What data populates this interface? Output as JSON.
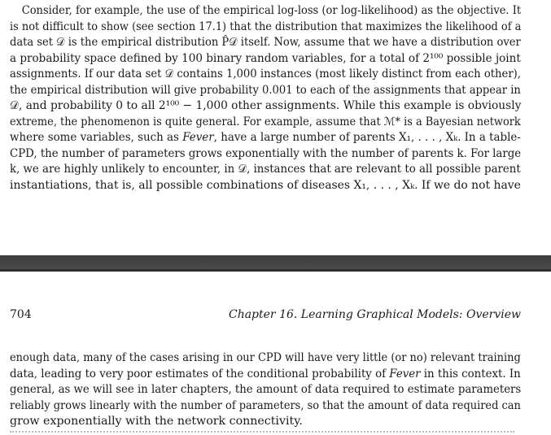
{
  "page_top": {
    "lines": [
      "Consider, for example, the use of the empirical log-loss (or log-likelihood) as the objective. It",
      "is not difficult to show (see section 17.1) that the distribution that maximizes the likelihood of a",
      "data set 𝒟 is the empirical distribution P̂𝒟 itself. Now, assume that we have a distribution over",
      "a probability space defined by 100 binary random variables, for a total of 2¹⁰⁰ possible joint",
      "assignments. If our data set 𝒟 contains 1,000 instances (most likely distinct from each other),",
      "the empirical distribution will give probability 0.001 to each of the assignments that appear in",
      "𝒟, and probability 0 to all 2¹⁰⁰ − 1,000 other assignments. While this example is obviously",
      "extreme, the phenomenon is quite general. For example, assume that ℳ* is a Bayesian network",
      "where some variables, such as Fever, have a large number of parents X₁, . . . , Xₖ. In a table-",
      "CPD, the number of parameters grows exponentially with the number of parents k. For large",
      "k, we are highly unlikely to encounter, in 𝒟, instances that are relevant to all possible parent",
      "instantiations, that is, all possible combinations of diseases X₁, . . . , Xₖ. If we do not have"
    ]
  },
  "page_bottom": {
    "page_number": "704",
    "running_head": "Chapter 16.  Learning Graphical Models: Overview",
    "lines": [
      "enough data, many of the cases arising in our CPD will have very little (or no) relevant training",
      "data, leading to very poor estimates of the conditional probability of Fever in this context. In",
      "general, as we will see in later chapters, the amount of data required to estimate parameters",
      "reliably grows linearly with the number of parameters, so that the amount of data required can",
      "grow exponentially with the network connectivity."
    ]
  }
}
